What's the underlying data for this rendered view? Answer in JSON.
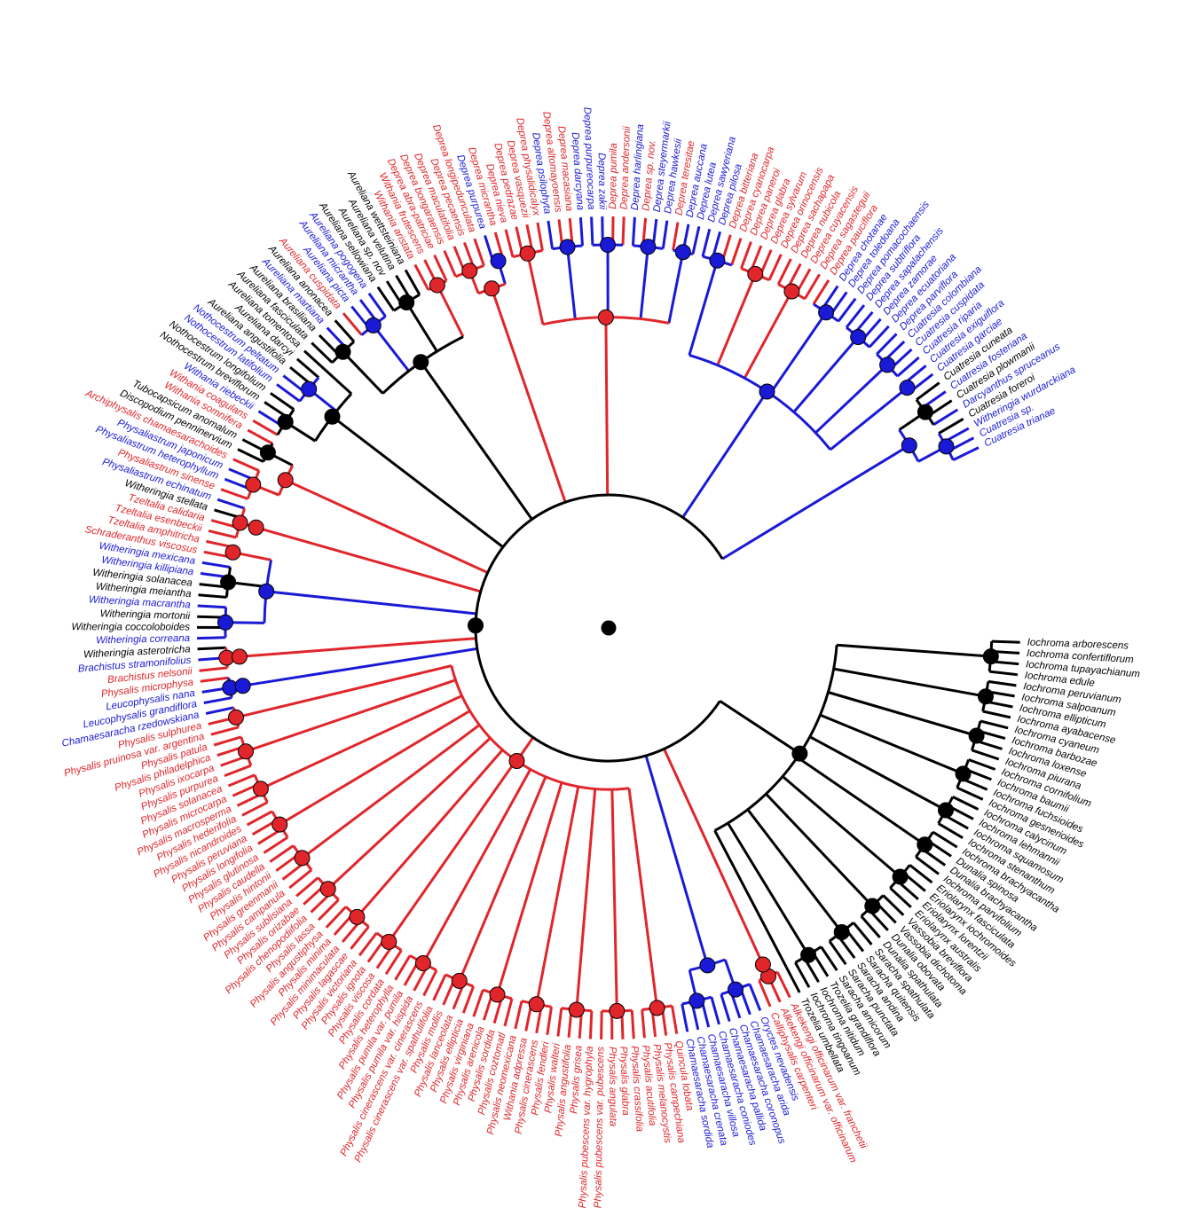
{
  "colors": {
    "black": "#000000",
    "blue": "#1a1ad6",
    "red": "#e0262b"
  },
  "taxa": [
    {
      "name": "Iochroma arborescens",
      "color": "black"
    },
    {
      "name": "Iochroma confertiflorum",
      "color": "black"
    },
    {
      "name": "Iochroma tupayachianum",
      "color": "black"
    },
    {
      "name": "Iochroma edule",
      "color": "black"
    },
    {
      "name": "Iochroma peruvianum",
      "color": "black"
    },
    {
      "name": "Iochroma salpoanum",
      "color": "black"
    },
    {
      "name": "Iochroma ellipticum",
      "color": "black"
    },
    {
      "name": "Iochroma ayabacense",
      "color": "black"
    },
    {
      "name": "Iochroma cyaneum",
      "color": "black"
    },
    {
      "name": "Iochroma barbozae",
      "color": "black"
    },
    {
      "name": "Iochroma loxense",
      "color": "black"
    },
    {
      "name": "Iochroma piurana",
      "color": "black"
    },
    {
      "name": "Iochroma cornifolium",
      "color": "black"
    },
    {
      "name": "Iochroma baumii",
      "color": "black"
    },
    {
      "name": "Iochroma fuchsioides",
      "color": "black"
    },
    {
      "name": "Iochroma gesnerioides",
      "color": "black"
    },
    {
      "name": "Iochroma calycinum",
      "color": "black"
    },
    {
      "name": "Iochroma lehmannii",
      "color": "black"
    },
    {
      "name": "Iochroma squamosum",
      "color": "black"
    },
    {
      "name": "Iochroma stenanthum",
      "color": "black"
    },
    {
      "name": "Iochroma brachyacantha",
      "color": "black"
    },
    {
      "name": "Dunalia spinosa",
      "color": "black"
    },
    {
      "name": "Dunalia brachyacantha",
      "color": "black"
    },
    {
      "name": "Iochroma parvifolium",
      "color": "black"
    },
    {
      "name": "Eriolarynx fasciculata",
      "color": "black"
    },
    {
      "name": "Eriolarynx iochromoides",
      "color": "black"
    },
    {
      "name": "Eriolarynx lorentzii",
      "color": "black"
    },
    {
      "name": "Eriolarynx australis",
      "color": "black"
    },
    {
      "name": "Vassobia breviflora",
      "color": "black"
    },
    {
      "name": "Vassobia dichotoma",
      "color": "black"
    },
    {
      "name": "Dunalia obovata",
      "color": "black"
    },
    {
      "name": "Dunalia spathulata",
      "color": "black"
    },
    {
      "name": "Saracha spathulata",
      "color": "black"
    },
    {
      "name": "Saracha quitensis",
      "color": "black"
    },
    {
      "name": "Saracha andina",
      "color": "black"
    },
    {
      "name": "Saracha punctata",
      "color": "black"
    },
    {
      "name": "Saracha amicorum",
      "color": "black"
    },
    {
      "name": "Trozelia grandiflora",
      "color": "black"
    },
    {
      "name": "Iochroma nitidum",
      "color": "black"
    },
    {
      "name": "Iochroma tingoanum",
      "color": "black"
    },
    {
      "name": "Trozelia umbellata",
      "color": "black"
    },
    {
      "name": "Alkekengi officinarum var. franchetii",
      "color": "red"
    },
    {
      "name": "Alkekengi officinarum var. officinarum",
      "color": "red"
    },
    {
      "name": "Calliphysalis carpenteri",
      "color": "red"
    },
    {
      "name": "Oryctes nevadensis",
      "color": "blue"
    },
    {
      "name": "Chamaesaracha arida",
      "color": "blue"
    },
    {
      "name": "Chamaesaracha coronopus",
      "color": "blue"
    },
    {
      "name": "Chamaesaracha pallida",
      "color": "blue"
    },
    {
      "name": "Chamaesaracha coniodes",
      "color": "blue"
    },
    {
      "name": "Chamaesaracha villosa",
      "color": "blue"
    },
    {
      "name": "Chamaesaracha crenata",
      "color": "blue"
    },
    {
      "name": "Chamaesaracha sordida",
      "color": "blue"
    },
    {
      "name": "Quincula lobata",
      "color": "red"
    },
    {
      "name": "Physalis campechiana",
      "color": "red"
    },
    {
      "name": "Physalis melanocystis",
      "color": "red"
    },
    {
      "name": "Physalis acutifolia",
      "color": "red"
    },
    {
      "name": "Physalis crassifolia",
      "color": "red"
    },
    {
      "name": "Physalis glabra",
      "color": "red"
    },
    {
      "name": "Physalis angulata",
      "color": "red"
    },
    {
      "name": "Physalis pubescens var. pubescens",
      "color": "red"
    },
    {
      "name": "Physalis pubescens var. hygrophyla",
      "color": "red"
    },
    {
      "name": "Physalis grisea",
      "color": "red"
    },
    {
      "name": "Physalis angustifolia",
      "color": "red"
    },
    {
      "name": "Physalis walteri",
      "color": "red"
    },
    {
      "name": "Physalis fendleri",
      "color": "red"
    },
    {
      "name": "Physalis cinerascens",
      "color": "red"
    },
    {
      "name": "Withania adpressa",
      "color": "red"
    },
    {
      "name": "Physalis neomexicana",
      "color": "red"
    },
    {
      "name": "Physalis coztomatl",
      "color": "red"
    },
    {
      "name": "Physalis sordida",
      "color": "red"
    },
    {
      "name": "Physalis arenicola",
      "color": "red"
    },
    {
      "name": "Physalis virginiana",
      "color": "red"
    },
    {
      "name": "Physalis ellipticia",
      "color": "red"
    },
    {
      "name": "Physalis lanceolata",
      "color": "red"
    },
    {
      "name": "Physalis mollis",
      "color": "red"
    },
    {
      "name": "Physalis cinerascens var. spathulifolia",
      "color": "red"
    },
    {
      "name": "Physalis cinerascens var. cinerascens",
      "color": "red"
    },
    {
      "name": "Physalis pumila var. hispida",
      "color": "red"
    },
    {
      "name": "Physalis pumila var. pumila",
      "color": "red"
    },
    {
      "name": "Physalis heterophylla",
      "color": "red"
    },
    {
      "name": "Physalis cordata",
      "color": "red"
    },
    {
      "name": "Physalis viscosa",
      "color": "red"
    },
    {
      "name": "Physalis ignota",
      "color": "red"
    },
    {
      "name": "Physalis victoriana",
      "color": "red"
    },
    {
      "name": "Physalis lagascae",
      "color": "red"
    },
    {
      "name": "Physalis minimaculata",
      "color": "red"
    },
    {
      "name": "Physalis minima",
      "color": "red"
    },
    {
      "name": "Physalis angustiphysa",
      "color": "red"
    },
    {
      "name": "Physalis lassa",
      "color": "red"
    },
    {
      "name": "Physalis chenopodiifolia",
      "color": "red"
    },
    {
      "name": "Physalis orizabae",
      "color": "red"
    },
    {
      "name": "Physalis sublisiana",
      "color": "red"
    },
    {
      "name": "Physalis campanula",
      "color": "red"
    },
    {
      "name": "Physalis greenmanii",
      "color": "red"
    },
    {
      "name": "Physalis hintonii",
      "color": "red"
    },
    {
      "name": "Physalis caudella",
      "color": "red"
    },
    {
      "name": "Physalis glutinosa",
      "color": "red"
    },
    {
      "name": "Physalis longifolia",
      "color": "red"
    },
    {
      "name": "Physalis peruviana",
      "color": "red"
    },
    {
      "name": "Physalis nicandroides",
      "color": "red"
    },
    {
      "name": "Physalis hederifolia",
      "color": "red"
    },
    {
      "name": "Physalis macrosperma",
      "color": "red"
    },
    {
      "name": "Physalis microcarpa",
      "color": "red"
    },
    {
      "name": "Physalis solanacea",
      "color": "red"
    },
    {
      "name": "Physalis purpurea",
      "color": "red"
    },
    {
      "name": "Physalis ixocarpa",
      "color": "red"
    },
    {
      "name": "Physalis philadelphica",
      "color": "red"
    },
    {
      "name": "Physalis patula",
      "color": "red"
    },
    {
      "name": "Physalis pruinosa var. argentina",
      "color": "red"
    },
    {
      "name": "Physalis sulphurea",
      "color": "red"
    },
    {
      "name": "Chamaesaracha rzedowskiana",
      "color": "blue"
    },
    {
      "name": "Leucophysalis grandiflora",
      "color": "blue"
    },
    {
      "name": "Leucophysalis nana",
      "color": "blue"
    },
    {
      "name": "Physalis microphysa",
      "color": "red"
    },
    {
      "name": "Brachistus nelsonii",
      "color": "red"
    },
    {
      "name": "Brachistus stramonifolius",
      "color": "blue"
    },
    {
      "name": "Witheringia asterotricha",
      "color": "black"
    },
    {
      "name": "Witheringia correana",
      "color": "blue"
    },
    {
      "name": "Witheringia coccoloboides",
      "color": "black"
    },
    {
      "name": "Witheringia mortonii",
      "color": "black"
    },
    {
      "name": "Witheringia macrantha",
      "color": "blue"
    },
    {
      "name": "Witheringia meiantha",
      "color": "black"
    },
    {
      "name": "Witheringia solanacea",
      "color": "black"
    },
    {
      "name": "Witheringia killipiana",
      "color": "blue"
    },
    {
      "name": "Witheringia mexicana",
      "color": "blue"
    },
    {
      "name": "Schraderanthus viscosus",
      "color": "red"
    },
    {
      "name": "Tzeltalia amphitricha",
      "color": "red"
    },
    {
      "name": "Tzeltalia esenbeckii",
      "color": "red"
    },
    {
      "name": "Tzeltalia calidaria",
      "color": "red"
    },
    {
      "name": "Witheringia stellata",
      "color": "black"
    },
    {
      "name": "Physaliastrum echinatum",
      "color": "blue"
    },
    {
      "name": "Physaliastrum sinense",
      "color": "red"
    },
    {
      "name": "Physaliastrum heterophyllum",
      "color": "blue"
    },
    {
      "name": "Physaliastrum japonicum",
      "color": "blue"
    },
    {
      "name": "Archiphysalis chamaesarachoides",
      "color": "red"
    },
    {
      "name": "Discopodium penninervium",
      "color": "black"
    },
    {
      "name": "Tubocapsicum anomalum",
      "color": "black"
    },
    {
      "name": "Withania somnifera",
      "color": "red"
    },
    {
      "name": "Withania coagulans",
      "color": "red"
    },
    {
      "name": "Withania riebeckii",
      "color": "blue"
    },
    {
      "name": "Nothocestrum breviflorum",
      "color": "black"
    },
    {
      "name": "Nothocestrum longifolium",
      "color": "black"
    },
    {
      "name": "Nothocestrum latifolium",
      "color": "blue"
    },
    {
      "name": "Nothocestrum peltatum",
      "color": "blue"
    },
    {
      "name": "Aureliana angustifolia",
      "color": "black"
    },
    {
      "name": "Aureliana darcyi",
      "color": "black"
    },
    {
      "name": "Aureliana tomentosa",
      "color": "black"
    },
    {
      "name": "Aureliana fasciculata",
      "color": "black"
    },
    {
      "name": "Aureliana brasiliana",
      "color": "black"
    },
    {
      "name": "Aureliana martiana",
      "color": "blue"
    },
    {
      "name": "Aureliana anonacea",
      "color": "black"
    },
    {
      "name": "Aureliana cuspidata",
      "color": "red"
    },
    {
      "name": "Aureliana picta",
      "color": "blue"
    },
    {
      "name": "Aureliana micrantha",
      "color": "blue"
    },
    {
      "name": "Aureliana pogogena",
      "color": "blue"
    },
    {
      "name": "Aureliana sellowiana",
      "color": "black"
    },
    {
      "name": "Aureliana sp. nov",
      "color": "black"
    },
    {
      "name": "Aureliana velutina",
      "color": "black"
    },
    {
      "name": "Aureliana wettsteiniana",
      "color": "black"
    },
    {
      "name": "Withania aristata",
      "color": "red"
    },
    {
      "name": "Withania frutescens",
      "color": "red"
    },
    {
      "name": "Deprea abra-patriciae",
      "color": "red"
    },
    {
      "name": "Deprea bongaraensis",
      "color": "red"
    },
    {
      "name": "Deprea maculatifolia",
      "color": "red"
    },
    {
      "name": "Deprea pecaensis",
      "color": "red"
    },
    {
      "name": "Deprea longipedunculata",
      "color": "red"
    },
    {
      "name": "Deprea purpurea",
      "color": "blue"
    },
    {
      "name": "Deprea micrantha",
      "color": "red"
    },
    {
      "name": "Deprea nieva",
      "color": "red"
    },
    {
      "name": "Deprea pedrazae",
      "color": "red"
    },
    {
      "name": "Deprea vasquezii",
      "color": "red"
    },
    {
      "name": "Deprea physalidicalyx",
      "color": "red"
    },
    {
      "name": "Deprea psilophyta",
      "color": "blue"
    },
    {
      "name": "Deprea altomayoensis",
      "color": "red"
    },
    {
      "name": "Deprea macasiana",
      "color": "red"
    },
    {
      "name": "Deprea darcyana",
      "color": "blue"
    },
    {
      "name": "Deprea purpureocarpa",
      "color": "blue"
    },
    {
      "name": "Deprea zakii",
      "color": "blue"
    },
    {
      "name": "Deprea pumila",
      "color": "red"
    },
    {
      "name": "Deprea andersonii",
      "color": "red"
    },
    {
      "name": "Deprea harlingiana",
      "color": "blue"
    },
    {
      "name": "Deprea sp. nov.",
      "color": "red"
    },
    {
      "name": "Deprea steyermarkii",
      "color": "blue"
    },
    {
      "name": "Deprea hawkesii",
      "color": "blue"
    },
    {
      "name": "Deprea teresitae",
      "color": "red"
    },
    {
      "name": "Deprea auccana",
      "color": "blue"
    },
    {
      "name": "Deprea lutea",
      "color": "blue"
    },
    {
      "name": "Deprea sawyeriana",
      "color": "blue"
    },
    {
      "name": "Deprea pilosa",
      "color": "blue"
    },
    {
      "name": "Deprea bitteriana",
      "color": "red"
    },
    {
      "name": "Deprea cyanocarpa",
      "color": "red"
    },
    {
      "name": "Deprea paneroi",
      "color": "red"
    },
    {
      "name": "Deprea glabra",
      "color": "red"
    },
    {
      "name": "Deprea sylvarum",
      "color": "red"
    },
    {
      "name": "Deprea orinocensis",
      "color": "red"
    },
    {
      "name": "Deprea sachapapa",
      "color": "red"
    },
    {
      "name": "Deprea nubicola",
      "color": "red"
    },
    {
      "name": "Deprea cuyacensis",
      "color": "red"
    },
    {
      "name": "Deprea sagasteguii",
      "color": "red"
    },
    {
      "name": "Deprea pauciflora",
      "color": "red"
    },
    {
      "name": "Deprea chotanae",
      "color": "blue"
    },
    {
      "name": "Deprea toledoana",
      "color": "blue"
    },
    {
      "name": "Deprea pomacochaensis",
      "color": "blue"
    },
    {
      "name": "Deprea subtriflora",
      "color": "blue"
    },
    {
      "name": "Deprea sapalachensis",
      "color": "blue"
    },
    {
      "name": "Deprea zamorae",
      "color": "blue"
    },
    {
      "name": "Deprea ecuatoriana",
      "color": "blue"
    },
    {
      "name": "Deprea parviflora",
      "color": "blue"
    },
    {
      "name": "Cuatresia colombiana",
      "color": "blue"
    },
    {
      "name": "Cuatresia cuspidata",
      "color": "blue"
    },
    {
      "name": "Cuatresia riparia",
      "color": "blue"
    },
    {
      "name": "Cuatresia exiguiflora",
      "color": "blue"
    },
    {
      "name": "Cuatresia garciae",
      "color": "blue"
    },
    {
      "name": "Cuatresia cuneata",
      "color": "black"
    },
    {
      "name": "Cuatresia fosteriana",
      "color": "blue"
    },
    {
      "name": "Cuatresia plowmanii",
      "color": "black"
    },
    {
      "name": "Darcyanthus spruceanus",
      "color": "blue"
    },
    {
      "name": "Cuatresia foreroi",
      "color": "black"
    },
    {
      "name": "Witheringia wurdarckiana",
      "color": "blue"
    },
    {
      "name": "Cuatresia sp.",
      "color": "blue"
    },
    {
      "name": "Cuatresia trianae",
      "color": "blue"
    }
  ]
}
